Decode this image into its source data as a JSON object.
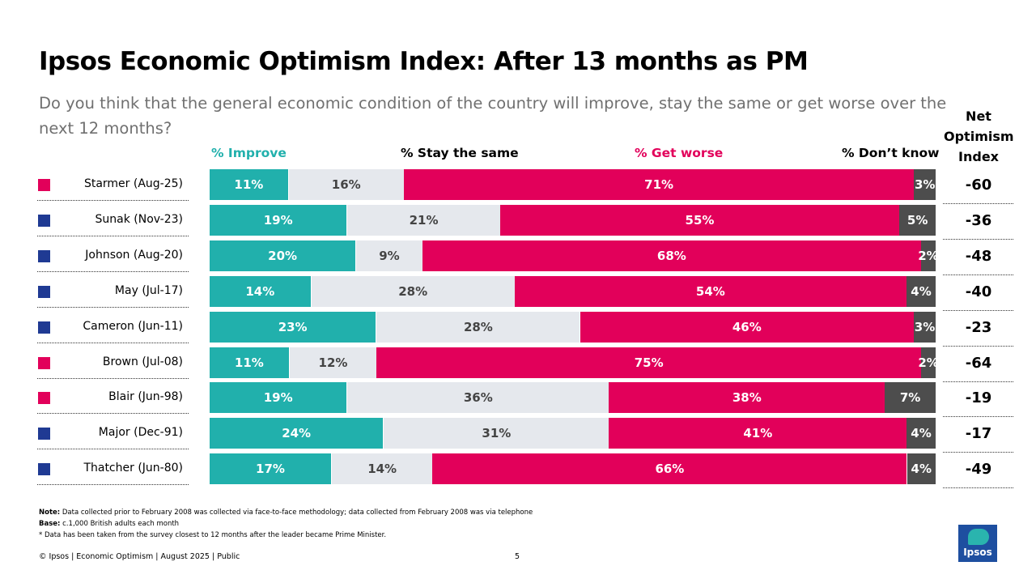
{
  "title": "Ipsos Economic Optimism Index: After 13 months as PM",
  "subtitle": "Do you think that the general economic condition of the country will improve, stay the same or get worse over the next 12 months?",
  "net_header": "Net Optimism Index",
  "colors": {
    "improve": "#21b0ac",
    "same": "#e5e8ed",
    "worse": "#e2005a",
    "dont_know": "#4d4d4d",
    "labour": "#e2005a",
    "conservative": "#1f3a93"
  },
  "chart_data": {
    "type": "bar",
    "stacked": true,
    "orientation": "horizontal",
    "value_suffix": "%",
    "categories": [
      "Starmer (Aug-25)",
      "Sunak (Nov-23)",
      "Johnson (Aug-20)",
      "May (Jul-17)",
      "Cameron (Jun-11)",
      "Brown (Jul-08)",
      "Blair (Jun-98)",
      "Major (Dec-91)",
      "Thatcher (Jun-80)"
    ],
    "party": [
      "labour",
      "conservative",
      "conservative",
      "conservative",
      "conservative",
      "labour",
      "labour",
      "conservative",
      "conservative"
    ],
    "series": [
      {
        "key": "improve",
        "name": "% Improve",
        "values": [
          11,
          19,
          20,
          14,
          23,
          11,
          19,
          24,
          17
        ]
      },
      {
        "key": "same",
        "name": "% Stay the same",
        "values": [
          16,
          21,
          9,
          28,
          28,
          12,
          36,
          31,
          14
        ]
      },
      {
        "key": "worse",
        "name": "% Get worse",
        "values": [
          71,
          55,
          68,
          54,
          46,
          75,
          38,
          41,
          66
        ]
      },
      {
        "key": "dk",
        "name": "% Don’t know",
        "values": [
          3,
          5,
          2,
          4,
          3,
          2,
          7,
          4,
          4
        ]
      }
    ],
    "net_optimism": [
      "-60",
      "-36",
      "-48",
      "-40",
      "-23",
      "-64",
      "-19",
      "-17",
      "-49"
    ]
  },
  "footnotes": {
    "note_label": "Note:",
    "note_text": "Data collected prior to February 2008 was collected via face-to-face methodology; data collected from February 2008 was via telephone",
    "base_label": "Base:",
    "base_text": "c.1,000 British adults each month",
    "asterisk_text": "* Data has been taken from the survey closest to 12 months after the leader became Prime Minister."
  },
  "footer": {
    "left": "© Ipsos | Economic Optimism | August 2025 | Public",
    "page": "5"
  },
  "logo_text": "Ipsos"
}
